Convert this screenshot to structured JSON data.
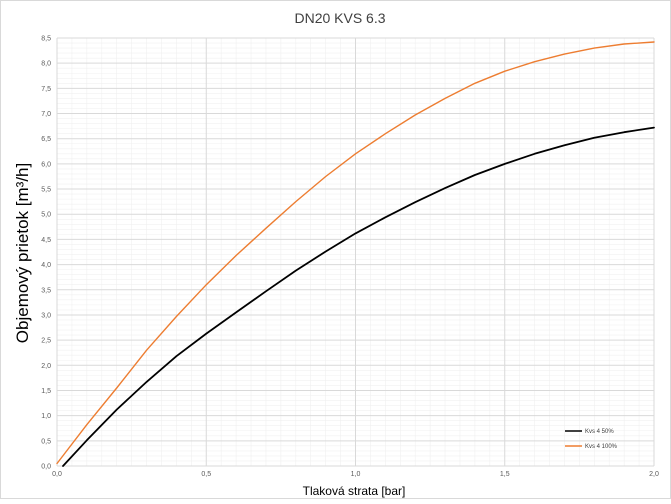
{
  "chart_data": {
    "type": "line",
    "title": "DN20 KVS 6.3",
    "xlabel": "Tlaková strata [bar]",
    "ylabel": "Objemový prietok [m³/h]",
    "xlim": [
      0,
      2.0
    ],
    "ylim": [
      0,
      8.5
    ],
    "x_ticks": [
      "0,0",
      "0,5",
      "1,0",
      "1,5",
      "2,0"
    ],
    "y_ticks": [
      "0,0",
      "0,5",
      "1,0",
      "1,5",
      "2,0",
      "2,5",
      "3,0",
      "3,5",
      "4,0",
      "4,5",
      "5,0",
      "5,5",
      "6,0",
      "6,5",
      "7,0",
      "7,5",
      "8,0",
      "8,5"
    ],
    "grid": true,
    "legend_position": "bottom-right",
    "series": [
      {
        "name": "Kvs 4 50%",
        "color": "#000000",
        "x": [
          0.02,
          0.1,
          0.2,
          0.3,
          0.4,
          0.5,
          0.6,
          0.7,
          0.8,
          0.9,
          1.0,
          1.1,
          1.2,
          1.3,
          1.4,
          1.5,
          1.6,
          1.7,
          1.8,
          1.9,
          2.0
        ],
        "y": [
          0.0,
          0.51,
          1.12,
          1.67,
          2.18,
          2.63,
          3.05,
          3.47,
          3.88,
          4.26,
          4.62,
          4.94,
          5.24,
          5.52,
          5.78,
          6.0,
          6.2,
          6.37,
          6.52,
          6.63,
          6.72
        ]
      },
      {
        "name": "Kvs 4 100%",
        "color": "#ed7d31",
        "x": [
          0.0,
          0.1,
          0.2,
          0.3,
          0.4,
          0.5,
          0.6,
          0.7,
          0.8,
          0.9,
          1.0,
          1.1,
          1.2,
          1.3,
          1.4,
          1.5,
          1.6,
          1.7,
          1.8,
          1.9,
          2.0
        ],
        "y": [
          0.05,
          0.82,
          1.55,
          2.3,
          2.97,
          3.6,
          4.18,
          4.72,
          5.25,
          5.75,
          6.2,
          6.6,
          6.97,
          7.3,
          7.6,
          7.84,
          8.03,
          8.18,
          8.3,
          8.38,
          8.42
        ]
      }
    ]
  }
}
